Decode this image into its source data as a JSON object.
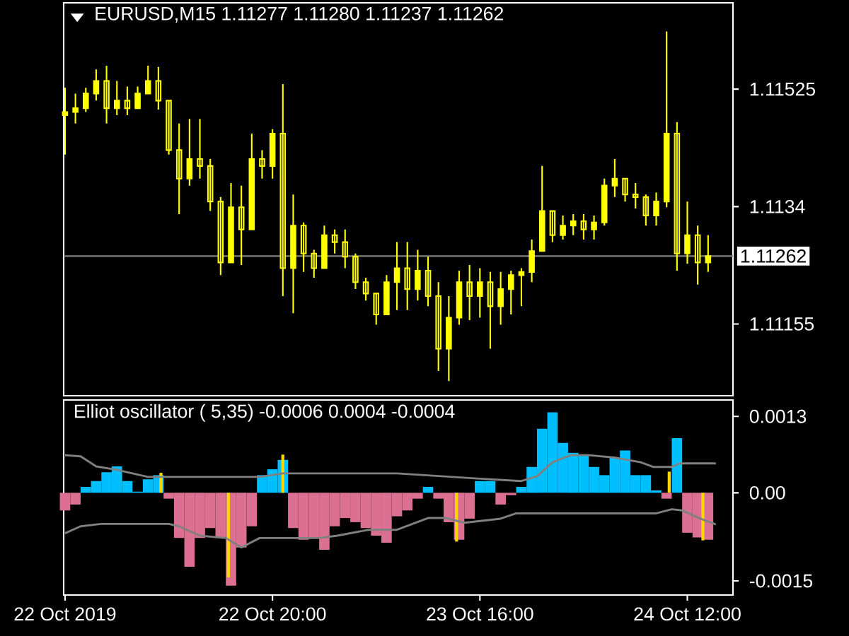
{
  "chart_data": [
    {
      "type": "candlestick",
      "title": "EURUSD,M15 1.11277 1.11280 1.11237 1.11262",
      "color": "#ffff00",
      "x": [
        "2019-10-22T00:00",
        "2019-10-22T01:00",
        "2019-10-22T02:00",
        "2019-10-22T03:00",
        "2019-10-22T04:00",
        "2019-10-22T05:00",
        "2019-10-22T06:00",
        "2019-10-22T07:00",
        "2019-10-22T08:00",
        "2019-10-22T09:00",
        "2019-10-22T10:00",
        "2019-10-22T11:00",
        "2019-10-22T12:00",
        "2019-10-22T13:00",
        "2019-10-22T14:00",
        "2019-10-22T15:00",
        "2019-10-22T16:00",
        "2019-10-22T17:00",
        "2019-10-22T18:00",
        "2019-10-22T19:00",
        "2019-10-22T20:00",
        "2019-10-22T21:00",
        "2019-10-22T22:00",
        "2019-10-22T23:00",
        "2019-10-23T00:00",
        "2019-10-23T01:00",
        "2019-10-23T02:00",
        "2019-10-23T03:00",
        "2019-10-23T04:00",
        "2019-10-23T05:00",
        "2019-10-23T06:00",
        "2019-10-23T07:00",
        "2019-10-23T08:00",
        "2019-10-23T09:00",
        "2019-10-23T10:00",
        "2019-10-23T11:00",
        "2019-10-23T12:00",
        "2019-10-23T13:00",
        "2019-10-23T14:00",
        "2019-10-23T15:00",
        "2019-10-23T16:00",
        "2019-10-23T17:00",
        "2019-10-23T18:00",
        "2019-10-23T19:00",
        "2019-10-23T20:00",
        "2019-10-23T21:00",
        "2019-10-23T22:00",
        "2019-10-23T23:00",
        "2019-10-24T00:00",
        "2019-10-24T01:00",
        "2019-10-24T02:00",
        "2019-10-24T03:00",
        "2019-10-24T04:00",
        "2019-10-24T05:00",
        "2019-10-24T06:00",
        "2019-10-24T07:00",
        "2019-10-24T08:00",
        "2019-10-24T09:00",
        "2019-10-24T10:00",
        "2019-10-24T11:00",
        "2019-10-24T12:00",
        "2019-10-24T13:00",
        "2019-10-24T14:00"
      ],
      "ohlc": [
        [
          1.11484,
          1.11527,
          1.11422,
          1.11489
        ],
        [
          1.11489,
          1.11518,
          1.11471,
          1.11495
        ],
        [
          1.11495,
          1.11527,
          1.11489,
          1.11518
        ],
        [
          1.11518,
          1.11556,
          1.11507,
          1.11538
        ],
        [
          1.11538,
          1.11562,
          1.11471,
          1.11495
        ],
        [
          1.11495,
          1.11538,
          1.11484,
          1.11507
        ],
        [
          1.11507,
          1.11529,
          1.11484,
          1.11495
        ],
        [
          1.11495,
          1.11529,
          1.11495,
          1.11518
        ],
        [
          1.11518,
          1.11562,
          1.11518,
          1.11538
        ],
        [
          1.11538,
          1.1156,
          1.11493,
          1.11507
        ],
        [
          1.11507,
          1.11507,
          1.11422,
          1.11429
        ],
        [
          1.11429,
          1.11471,
          1.11328,
          1.11384
        ],
        [
          1.11384,
          1.11478,
          1.11373,
          1.11415
        ],
        [
          1.11415,
          1.11478,
          1.11384,
          1.11404
        ],
        [
          1.11404,
          1.11415,
          1.11333,
          1.11348
        ],
        [
          1.11348,
          1.11355,
          1.11232,
          1.11252
        ],
        [
          1.11252,
          1.11377,
          1.11252,
          1.11339
        ],
        [
          1.11339,
          1.11373,
          1.11248,
          1.11304
        ],
        [
          1.11304,
          1.11455,
          1.11304,
          1.11415
        ],
        [
          1.11415,
          1.11429,
          1.11384,
          1.11404
        ],
        [
          1.11404,
          1.11462,
          1.11384,
          1.11455
        ],
        [
          1.11455,
          1.11533,
          1.11199,
          1.11243
        ],
        [
          1.11243,
          1.11359,
          1.11172,
          1.1131
        ],
        [
          1.1131,
          1.11315,
          1.11237,
          1.11266
        ],
        [
          1.11266,
          1.11272,
          1.11228,
          1.11243
        ],
        [
          1.11243,
          1.1131,
          1.11243,
          1.11295
        ],
        [
          1.11295,
          1.11304,
          1.11266,
          1.11284
        ],
        [
          1.11284,
          1.11304,
          1.11243,
          1.11261
        ],
        [
          1.11261,
          1.11266,
          1.1121,
          1.11221
        ],
        [
          1.11221,
          1.11228,
          1.11192,
          1.11203
        ],
        [
          1.11203,
          1.11203,
          1.11154,
          1.1117
        ],
        [
          1.1117,
          1.11232,
          1.1117,
          1.11221
        ],
        [
          1.11221,
          1.11284,
          1.11177,
          1.11243
        ],
        [
          1.11243,
          1.11284,
          1.11177,
          1.1121
        ],
        [
          1.1121,
          1.11272,
          1.11192,
          1.11239
        ],
        [
          1.11239,
          1.11261,
          1.11183,
          1.11199
        ],
        [
          1.11199,
          1.11221,
          1.11081,
          1.11116
        ],
        [
          1.11116,
          1.11199,
          1.11065,
          1.11165
        ],
        [
          1.11165,
          1.11239,
          1.11154,
          1.11221
        ],
        [
          1.11221,
          1.11248,
          1.11161,
          1.11199
        ],
        [
          1.11199,
          1.11243,
          1.11165,
          1.11221
        ],
        [
          1.11221,
          1.11237,
          1.11116,
          1.11183
        ],
        [
          1.11183,
          1.11237,
          1.11154,
          1.1121
        ],
        [
          1.1121,
          1.11239,
          1.1117,
          1.11232
        ],
        [
          1.11232,
          1.11243,
          1.11183,
          1.11237
        ],
        [
          1.11237,
          1.11288,
          1.11221,
          1.1127
        ],
        [
          1.1127,
          1.11404,
          1.1127,
          1.11333
        ],
        [
          1.11333,
          1.11333,
          1.11284,
          1.11295
        ],
        [
          1.11295,
          1.11326,
          1.11288,
          1.1131
        ],
        [
          1.1131,
          1.11328,
          1.11295,
          1.11317
        ],
        [
          1.11317,
          1.11328,
          1.11288,
          1.11304
        ],
        [
          1.11304,
          1.11326,
          1.11288,
          1.11315
        ],
        [
          1.11315,
          1.11384,
          1.1131,
          1.11373
        ],
        [
          1.11373,
          1.11415,
          1.11355,
          1.11384
        ],
        [
          1.11384,
          1.11384,
          1.11348,
          1.11359
        ],
        [
          1.11359,
          1.11377,
          1.11337,
          1.11355
        ],
        [
          1.11355,
          1.11359,
          1.1131,
          1.11326
        ],
        [
          1.11326,
          1.11362,
          1.1131,
          1.11348
        ],
        [
          1.11348,
          1.11616,
          1.11339,
          1.11455
        ],
        [
          1.11455,
          1.11473,
          1.11239,
          1.11266
        ],
        [
          1.11266,
          1.11348,
          1.1125,
          1.11295
        ],
        [
          1.11295,
          1.1131,
          1.11217,
          1.11252
        ],
        [
          1.11252,
          1.11295,
          1.11237,
          1.11262
        ]
      ],
      "xlim": [
        "2019-10-21T23:52",
        "2019-10-24T16:24"
      ],
      "ylim": [
        1.11042,
        1.11661
      ],
      "yticks": [
        1.11155,
        1.1134,
        1.11525
      ],
      "ref_lines": [
        {
          "axis": "y",
          "value": 1.11262,
          "label": "1.11262",
          "color": "#808080"
        }
      ],
      "tick_labels": "y"
    },
    {
      "type": "bar",
      "title": "Elliot oscillator ( 5,35) -0.0006 0.0004 -0.0004",
      "x": [
        "2019-10-22T00:00",
        "2019-10-22T01:00",
        "2019-10-22T02:00",
        "2019-10-22T03:00",
        "2019-10-22T04:00",
        "2019-10-22T05:00",
        "2019-10-22T06:00",
        "2019-10-22T07:00",
        "2019-10-22T08:00",
        "2019-10-22T09:00",
        "2019-10-22T10:00",
        "2019-10-22T11:00",
        "2019-10-22T12:00",
        "2019-10-22T13:00",
        "2019-10-22T14:00",
        "2019-10-22T15:00",
        "2019-10-22T16:00",
        "2019-10-22T17:00",
        "2019-10-22T18:00",
        "2019-10-22T19:00",
        "2019-10-22T20:00",
        "2019-10-22T21:00",
        "2019-10-22T22:00",
        "2019-10-22T23:00",
        "2019-10-23T00:00",
        "2019-10-23T01:00",
        "2019-10-23T02:00",
        "2019-10-23T03:00",
        "2019-10-23T04:00",
        "2019-10-23T05:00",
        "2019-10-23T06:00",
        "2019-10-23T07:00",
        "2019-10-23T08:00",
        "2019-10-23T09:00",
        "2019-10-23T10:00",
        "2019-10-23T11:00",
        "2019-10-23T12:00",
        "2019-10-23T13:00",
        "2019-10-23T14:00",
        "2019-10-23T15:00",
        "2019-10-23T16:00",
        "2019-10-23T17:00",
        "2019-10-23T18:00",
        "2019-10-23T19:00",
        "2019-10-23T20:00",
        "2019-10-23T21:00",
        "2019-10-23T22:00",
        "2019-10-23T23:00",
        "2019-10-24T00:00",
        "2019-10-24T01:00",
        "2019-10-24T02:00",
        "2019-10-24T03:00",
        "2019-10-24T04:00",
        "2019-10-24T05:00",
        "2019-10-24T06:00",
        "2019-10-24T07:00",
        "2019-10-24T08:00",
        "2019-10-24T09:00",
        "2019-10-24T10:00",
        "2019-10-24T11:00",
        "2019-10-24T12:00",
        "2019-10-24T13:00",
        "2019-10-24T14:00"
      ],
      "series": [
        {
          "type": "bar",
          "values": [
            -0.0003,
            -0.0002,
            0.0001,
            0.0002,
            0.00035,
            0.00045,
            0.0002,
            2e-05,
            0.00023,
            0.0003,
            -0.0001,
            -0.00077,
            -0.00126,
            -0.00077,
            -0.0006,
            -0.00077,
            -0.00158,
            -0.00093,
            -0.00057,
            0.0003,
            0.0004,
            0.00056,
            -0.0006,
            -0.0008,
            -0.00077,
            -0.00097,
            -0.00057,
            -0.00043,
            -0.0005,
            -0.0006,
            -0.00073,
            -0.00085,
            -0.0004,
            -0.0003,
            -0.0001,
            0.0001,
            -0.0001,
            -0.0005,
            -0.0008,
            -0.00044,
            0.0002,
            0.0002,
            -0.0002,
            -4e-05,
            0.0001,
            0.00044,
            0.00109,
            0.00137,
            0.00085,
            0.00068,
            0.00064,
            0.00044,
            0.0003,
            0.0006,
            0.00072,
            0.0003,
            0.0003,
            4e-05,
            -0.0001,
            0.00093,
            -0.00068,
            -0.00076,
            -0.0008
          ],
          "colors": [
            "#db7093",
            "#db7093",
            "#00bfff",
            "#00bfff",
            "#00bfff",
            "#00bfff",
            "#00bfff",
            "#00bfff",
            "#00bfff",
            "#00bfff",
            "#db7093",
            "#db7093",
            "#db7093",
            "#db7093",
            "#db7093",
            "#db7093",
            "#db7093",
            "#db7093",
            "#db7093",
            "#00bfff",
            "#00bfff",
            "#00bfff",
            "#db7093",
            "#db7093",
            "#db7093",
            "#db7093",
            "#db7093",
            "#db7093",
            "#db7093",
            "#db7093",
            "#db7093",
            "#db7093",
            "#db7093",
            "#db7093",
            "#db7093",
            "#00bfff",
            "#db7093",
            "#db7093",
            "#db7093",
            "#db7093",
            "#00bfff",
            "#00bfff",
            "#db7093",
            "#db7093",
            "#00bfff",
            "#00bfff",
            "#00bfff",
            "#00bfff",
            "#00bfff",
            "#00bfff",
            "#00bfff",
            "#00bfff",
            "#00bfff",
            "#00bfff",
            "#00bfff",
            "#00bfff",
            "#00bfff",
            "#00bfff",
            "#db7093",
            "#00bfff",
            "#db7093",
            "#db7093",
            "#db7093"
          ]
        },
        {
          "type": "bar",
          "color": "#ffd700",
          "x": [
            "2019-10-22T09:15",
            "2019-10-22T15:45",
            "2019-10-22T21:00",
            "2019-10-23T13:45",
            "2019-10-24T10:15",
            "2019-10-24T13:30"
          ],
          "values": [
            0.00034,
            -0.00144,
            0.00065,
            -0.00083,
            0.00036,
            -0.00081
          ]
        },
        {
          "type": "line",
          "color": "#808080",
          "x": [
            "2019-10-22T00:00",
            "2019-10-22T01:30",
            "2019-10-22T03:00",
            "2019-10-22T05:00",
            "2019-10-22T07:00",
            "2019-10-22T08:00",
            "2019-10-22T12:00",
            "2019-10-22T18:45",
            "2019-10-22T21:00",
            "2019-10-23T08:00",
            "2019-10-23T16:00",
            "2019-10-23T20:00",
            "2019-10-23T21:30",
            "2019-10-23T23:00",
            "2019-10-24T00:45",
            "2019-10-24T02:30",
            "2019-10-24T05:00",
            "2019-10-24T07:30",
            "2019-10-24T08:45",
            "2019-10-24T10:30",
            "2019-10-24T11:15",
            "2019-10-24T14:45"
          ],
          "values": [
            0.00064,
            0.00062,
            0.00045,
            0.00039,
            0.00031,
            0.00027,
            0.00027,
            0.00027,
            0.00033,
            0.00033,
            0.00024,
            0.0002,
            0.00028,
            0.00052,
            0.00064,
            0.00064,
            0.0006,
            0.00052,
            0.00044,
            0.00044,
            0.0005,
            0.0005
          ]
        },
        {
          "type": "line",
          "color": "#808080",
          "x": [
            "2019-10-22T00:00",
            "2019-10-22T01:30",
            "2019-10-22T03:30",
            "2019-10-22T10:00",
            "2019-10-22T11:00",
            "2019-10-22T13:00",
            "2019-10-22T15:30",
            "2019-10-22T17:00",
            "2019-10-22T18:45",
            "2019-10-23T00:30",
            "2019-10-23T02:15",
            "2019-10-23T05:15",
            "2019-10-23T08:00",
            "2019-10-23T11:00",
            "2019-10-23T12:45",
            "2019-10-23T14:30",
            "2019-10-23T18:00",
            "2019-10-23T19:30",
            "2019-10-24T09:00",
            "2019-10-24T10:30",
            "2019-10-24T11:30",
            "2019-10-24T13:15",
            "2019-10-24T14:45"
          ],
          "values": [
            -0.00069,
            -0.00057,
            -0.00053,
            -0.00053,
            -0.00057,
            -0.00073,
            -0.00077,
            -0.00093,
            -0.00077,
            -0.00077,
            -0.00073,
            -0.00063,
            -0.00063,
            -0.00043,
            -0.00043,
            -0.00051,
            -0.00044,
            -0.00035,
            -0.00035,
            -0.00028,
            -0.0003,
            -0.00044,
            -0.00054
          ]
        }
      ],
      "xlim": [
        "2019-10-21T23:52",
        "2019-10-24T16:24"
      ],
      "ylim": [
        -0.00174,
        0.00158
      ],
      "yticks": [
        -0.0015,
        {
          "value": 0,
          "label": "0.00"
        },
        0.0013
      ],
      "xticks": [
        {
          "value": "2019-10-22T00:00",
          "label": "22 Oct 2019"
        },
        {
          "value": "2019-10-22T20:00",
          "label": "22 Oct 20:00"
        },
        {
          "value": "2019-10-23T16:00",
          "label": "23 Oct 16:00"
        },
        {
          "value": "2019-10-24T12:00",
          "label": "24 Oct 12:00"
        }
      ]
    }
  ]
}
